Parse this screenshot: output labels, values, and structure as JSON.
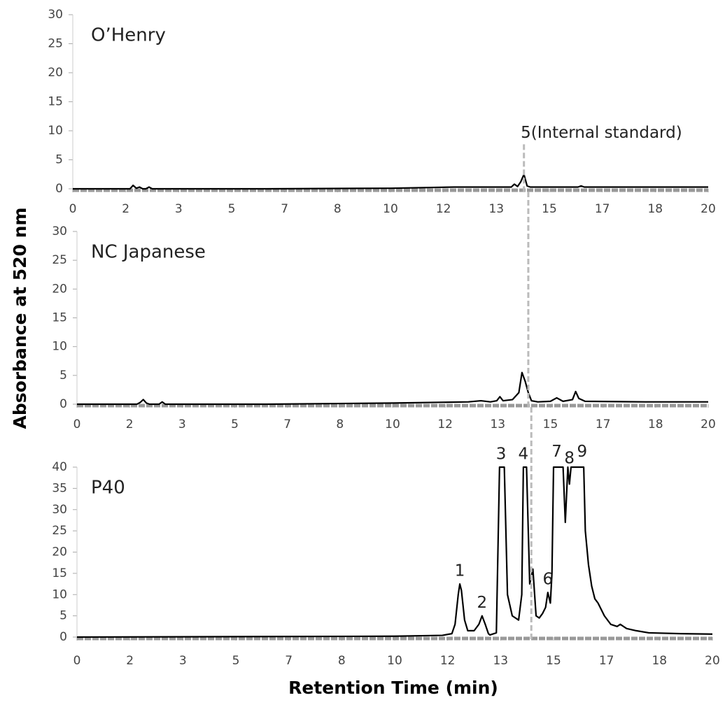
{
  "chart_data": [
    {
      "type": "line",
      "title": "O’Henry",
      "color": "#000000",
      "x": [
        0,
        1.8,
        1.9,
        2.0,
        2.1,
        2.2,
        2.3,
        2.4,
        2.5,
        3,
        6,
        10,
        12,
        13.5,
        13.8,
        13.9,
        14.0,
        14.1,
        14.2,
        14.3,
        14.4,
        14.6,
        15,
        15.5,
        15.9,
        16.0,
        16.1,
        16.5,
        18,
        20
      ],
      "values": [
        0,
        0,
        0.6,
        0.1,
        0.3,
        0,
        0,
        0.3,
        0,
        0,
        0,
        0.1,
        0.3,
        0.3,
        0.3,
        0.8,
        0.4,
        1.2,
        2.5,
        0.5,
        0.3,
        0.3,
        0.3,
        0.3,
        0.3,
        0.5,
        0.3,
        0.3,
        0.3,
        0.3
      ],
      "xlim": [
        0,
        20
      ],
      "ylim": [
        0,
        30
      ],
      "yticks": [
        0,
        5,
        10,
        15,
        20,
        25,
        30
      ],
      "xticks": [
        0,
        {
          "value": 1.667,
          "label": "2"
        },
        {
          "value": 3.333,
          "label": "3"
        },
        5,
        {
          "value": 6.667,
          "label": "7"
        },
        {
          "value": 8.333,
          "label": "8"
        },
        10,
        {
          "value": 11.667,
          "label": "12"
        },
        {
          "value": 13.333,
          "label": "13"
        },
        15,
        {
          "value": 16.667,
          "label": "17"
        },
        {
          "value": 18.333,
          "label": "18"
        },
        20
      ],
      "reference_x": 14.2,
      "annotations": [
        {
          "text": "5(Internal standard)",
          "x": 14.1,
          "y": 9.6,
          "anchor": "start"
        }
      ]
    },
    {
      "type": "line",
      "title": "NC Japanese",
      "color": "#000000",
      "ylabel": "Absorbance at 520 nm",
      "x": [
        0,
        1.9,
        2.0,
        2.1,
        2.2,
        2.3,
        2.6,
        2.7,
        2.8,
        6,
        10,
        12.4,
        12.8,
        13.1,
        13.3,
        13.4,
        13.5,
        13.8,
        14.0,
        14.1,
        14.2,
        14.3,
        14.4,
        14.6,
        15.0,
        15.2,
        15.4,
        15.7,
        15.8,
        15.9,
        16.1,
        18,
        20
      ],
      "values": [
        0,
        0,
        0.3,
        0.8,
        0.2,
        0,
        0,
        0.4,
        0,
        0,
        0.2,
        0.4,
        0.6,
        0.4,
        0.6,
        1.3,
        0.6,
        0.8,
        2,
        5.5,
        4,
        2,
        0.6,
        0.4,
        0.5,
        1.1,
        0.5,
        0.8,
        2.2,
        1,
        0.5,
        0.4,
        0.4
      ],
      "xlim": [
        0,
        20
      ],
      "ylim": [
        0,
        30
      ],
      "yticks": [
        0,
        5,
        10,
        15,
        20,
        25,
        30
      ],
      "xticks": [
        0,
        {
          "value": 1.667,
          "label": "2"
        },
        {
          "value": 3.333,
          "label": "3"
        },
        5,
        {
          "value": 6.667,
          "label": "7"
        },
        {
          "value": 8.333,
          "label": "8"
        },
        10,
        {
          "value": 11.667,
          "label": "12"
        },
        {
          "value": 13.333,
          "label": "13"
        },
        15,
        {
          "value": 16.667,
          "label": "17"
        },
        {
          "value": 18.333,
          "label": "18"
        },
        20
      ],
      "reference_x": 14.3
    },
    {
      "type": "line",
      "title": "P40",
      "color": "#000000",
      "xlabel": "Retention Time (min)",
      "x": [
        0,
        10,
        11.5,
        11.8,
        11.9,
        12.0,
        12.05,
        12.1,
        12.2,
        12.3,
        12.5,
        12.65,
        12.75,
        12.85,
        12.95,
        13.0,
        13.2,
        13.3,
        13.45,
        13.55,
        13.7,
        13.9,
        14.0,
        14.05,
        14.15,
        14.25,
        14.35,
        14.45,
        14.55,
        14.65,
        14.75,
        14.82,
        14.9,
        14.95,
        15.0,
        15.2,
        15.3,
        15.37,
        15.45,
        15.5,
        15.55,
        15.6,
        15.8,
        15.95,
        16.0,
        16.1,
        16.2,
        16.3,
        16.4,
        16.6,
        16.8,
        17.0,
        17.1,
        17.3,
        17.6,
        18,
        19,
        20
      ],
      "values": [
        0,
        0.2,
        0.4,
        0.8,
        3,
        10,
        12.5,
        11,
        4,
        1.5,
        1.5,
        3,
        5,
        3,
        0.8,
        0.5,
        1,
        40,
        40,
        10,
        5,
        4,
        10,
        40,
        40,
        12.5,
        16,
        5,
        4.5,
        5.5,
        7,
        10.5,
        8,
        15,
        40,
        40,
        40,
        27,
        40,
        36,
        40,
        40,
        40,
        40,
        25,
        17,
        12,
        9,
        8,
        5,
        3,
        2.5,
        3,
        2,
        1.5,
        1,
        0.8,
        0.7
      ],
      "xlim": [
        0,
        20
      ],
      "ylim": [
        0,
        40
      ],
      "yticks": [
        0,
        5,
        10,
        15,
        20,
        25,
        30,
        35,
        40
      ],
      "xticks": [
        0,
        {
          "value": 1.667,
          "label": "2"
        },
        {
          "value": 3.333,
          "label": "3"
        },
        5,
        {
          "value": 6.667,
          "label": "7"
        },
        {
          "value": 8.333,
          "label": "8"
        },
        10,
        {
          "value": 11.667,
          "label": "12"
        },
        {
          "value": 13.333,
          "label": "13"
        },
        15,
        {
          "value": 16.667,
          "label": "17"
        },
        {
          "value": 18.333,
          "label": "18"
        },
        20
      ],
      "reference_x": 14.3,
      "annotations": [
        {
          "text": "1",
          "x": 12.05,
          "y": 15.5
        },
        {
          "text": "2",
          "x": 12.75,
          "y": 8
        },
        {
          "text": "3",
          "x": 13.35,
          "y": 43
        },
        {
          "text": "4",
          "x": 14.05,
          "y": 43
        },
        {
          "text": "6",
          "x": 14.82,
          "y": 13.5
        },
        {
          "text": "7",
          "x": 15.1,
          "y": 43.5
        },
        {
          "text": "8",
          "x": 15.5,
          "y": 42
        },
        {
          "text": "9",
          "x": 15.9,
          "y": 43.5
        }
      ]
    }
  ]
}
